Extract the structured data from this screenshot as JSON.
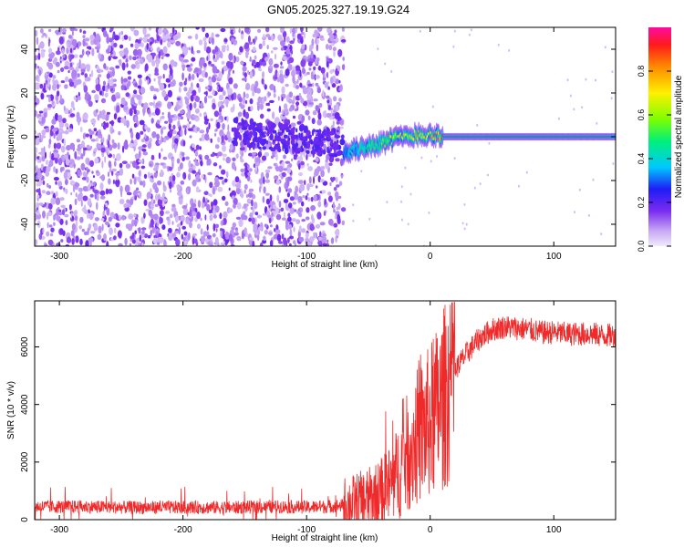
{
  "title": "GN05.2025.327.19.19.G24",
  "chart_data": [
    {
      "type": "heatmap",
      "xlabel": "Height of straight line (km)",
      "ylabel": "Frequency (Hz)",
      "xlim": [
        -320,
        150
      ],
      "ylim": [
        -50,
        50
      ],
      "x_ticks": [
        -300,
        -200,
        -100,
        0,
        100
      ],
      "y_ticks": [
        -40,
        -20,
        0,
        20,
        40
      ],
      "colorbar": {
        "label": "Normalized spectral amplitude",
        "range": [
          0,
          1
        ],
        "ticks": [
          0.0,
          0.2,
          0.4,
          0.6,
          0.8
        ],
        "tick_labels": [
          "0.0",
          "0.2",
          "0.4",
          "0.6",
          "0.8"
        ]
      },
      "noise_region_x": [
        -320,
        -70
      ],
      "ridge": {
        "x": [
          -70,
          -60,
          -50,
          -40,
          -30,
          -20,
          -10,
          0,
          10,
          50,
          100,
          150
        ],
        "frequency": [
          -7,
          -6,
          -4,
          -3,
          -1,
          0,
          1,
          1,
          0,
          0,
          0,
          0
        ],
        "amplitude": [
          0.35,
          0.4,
          0.5,
          0.55,
          0.65,
          0.75,
          0.8,
          0.85,
          0.95,
          0.95,
          0.95,
          0.95
        ]
      }
    },
    {
      "type": "line",
      "xlabel": "Height of straight line (km)",
      "ylabel": "SNR (10 * v/v)",
      "xlim": [
        -320,
        150
      ],
      "ylim": [
        0,
        7600
      ],
      "x_ticks": [
        -300,
        -200,
        -100,
        0,
        100
      ],
      "y_ticks": [
        0,
        2000,
        4000,
        6000
      ],
      "color": "#ee2a2a",
      "series": [
        {
          "x": [
            -320,
            -280,
            -240,
            -200,
            -160,
            -120,
            -100,
            -80,
            -70,
            -60,
            -50,
            -40,
            -30,
            -20,
            -10,
            0,
            10,
            20,
            30,
            40,
            50,
            60,
            70,
            80,
            90,
            100,
            110,
            120,
            130,
            140,
            150
          ],
          "values": [
            450,
            450,
            420,
            430,
            420,
            450,
            430,
            460,
            500,
            580,
            700,
            900,
            1300,
            2200,
            2900,
            3400,
            4100,
            5200,
            5800,
            6300,
            6600,
            6700,
            6650,
            6600,
            6500,
            6500,
            6450,
            6450,
            6450,
            6400,
            6400
          ]
        }
      ]
    }
  ]
}
